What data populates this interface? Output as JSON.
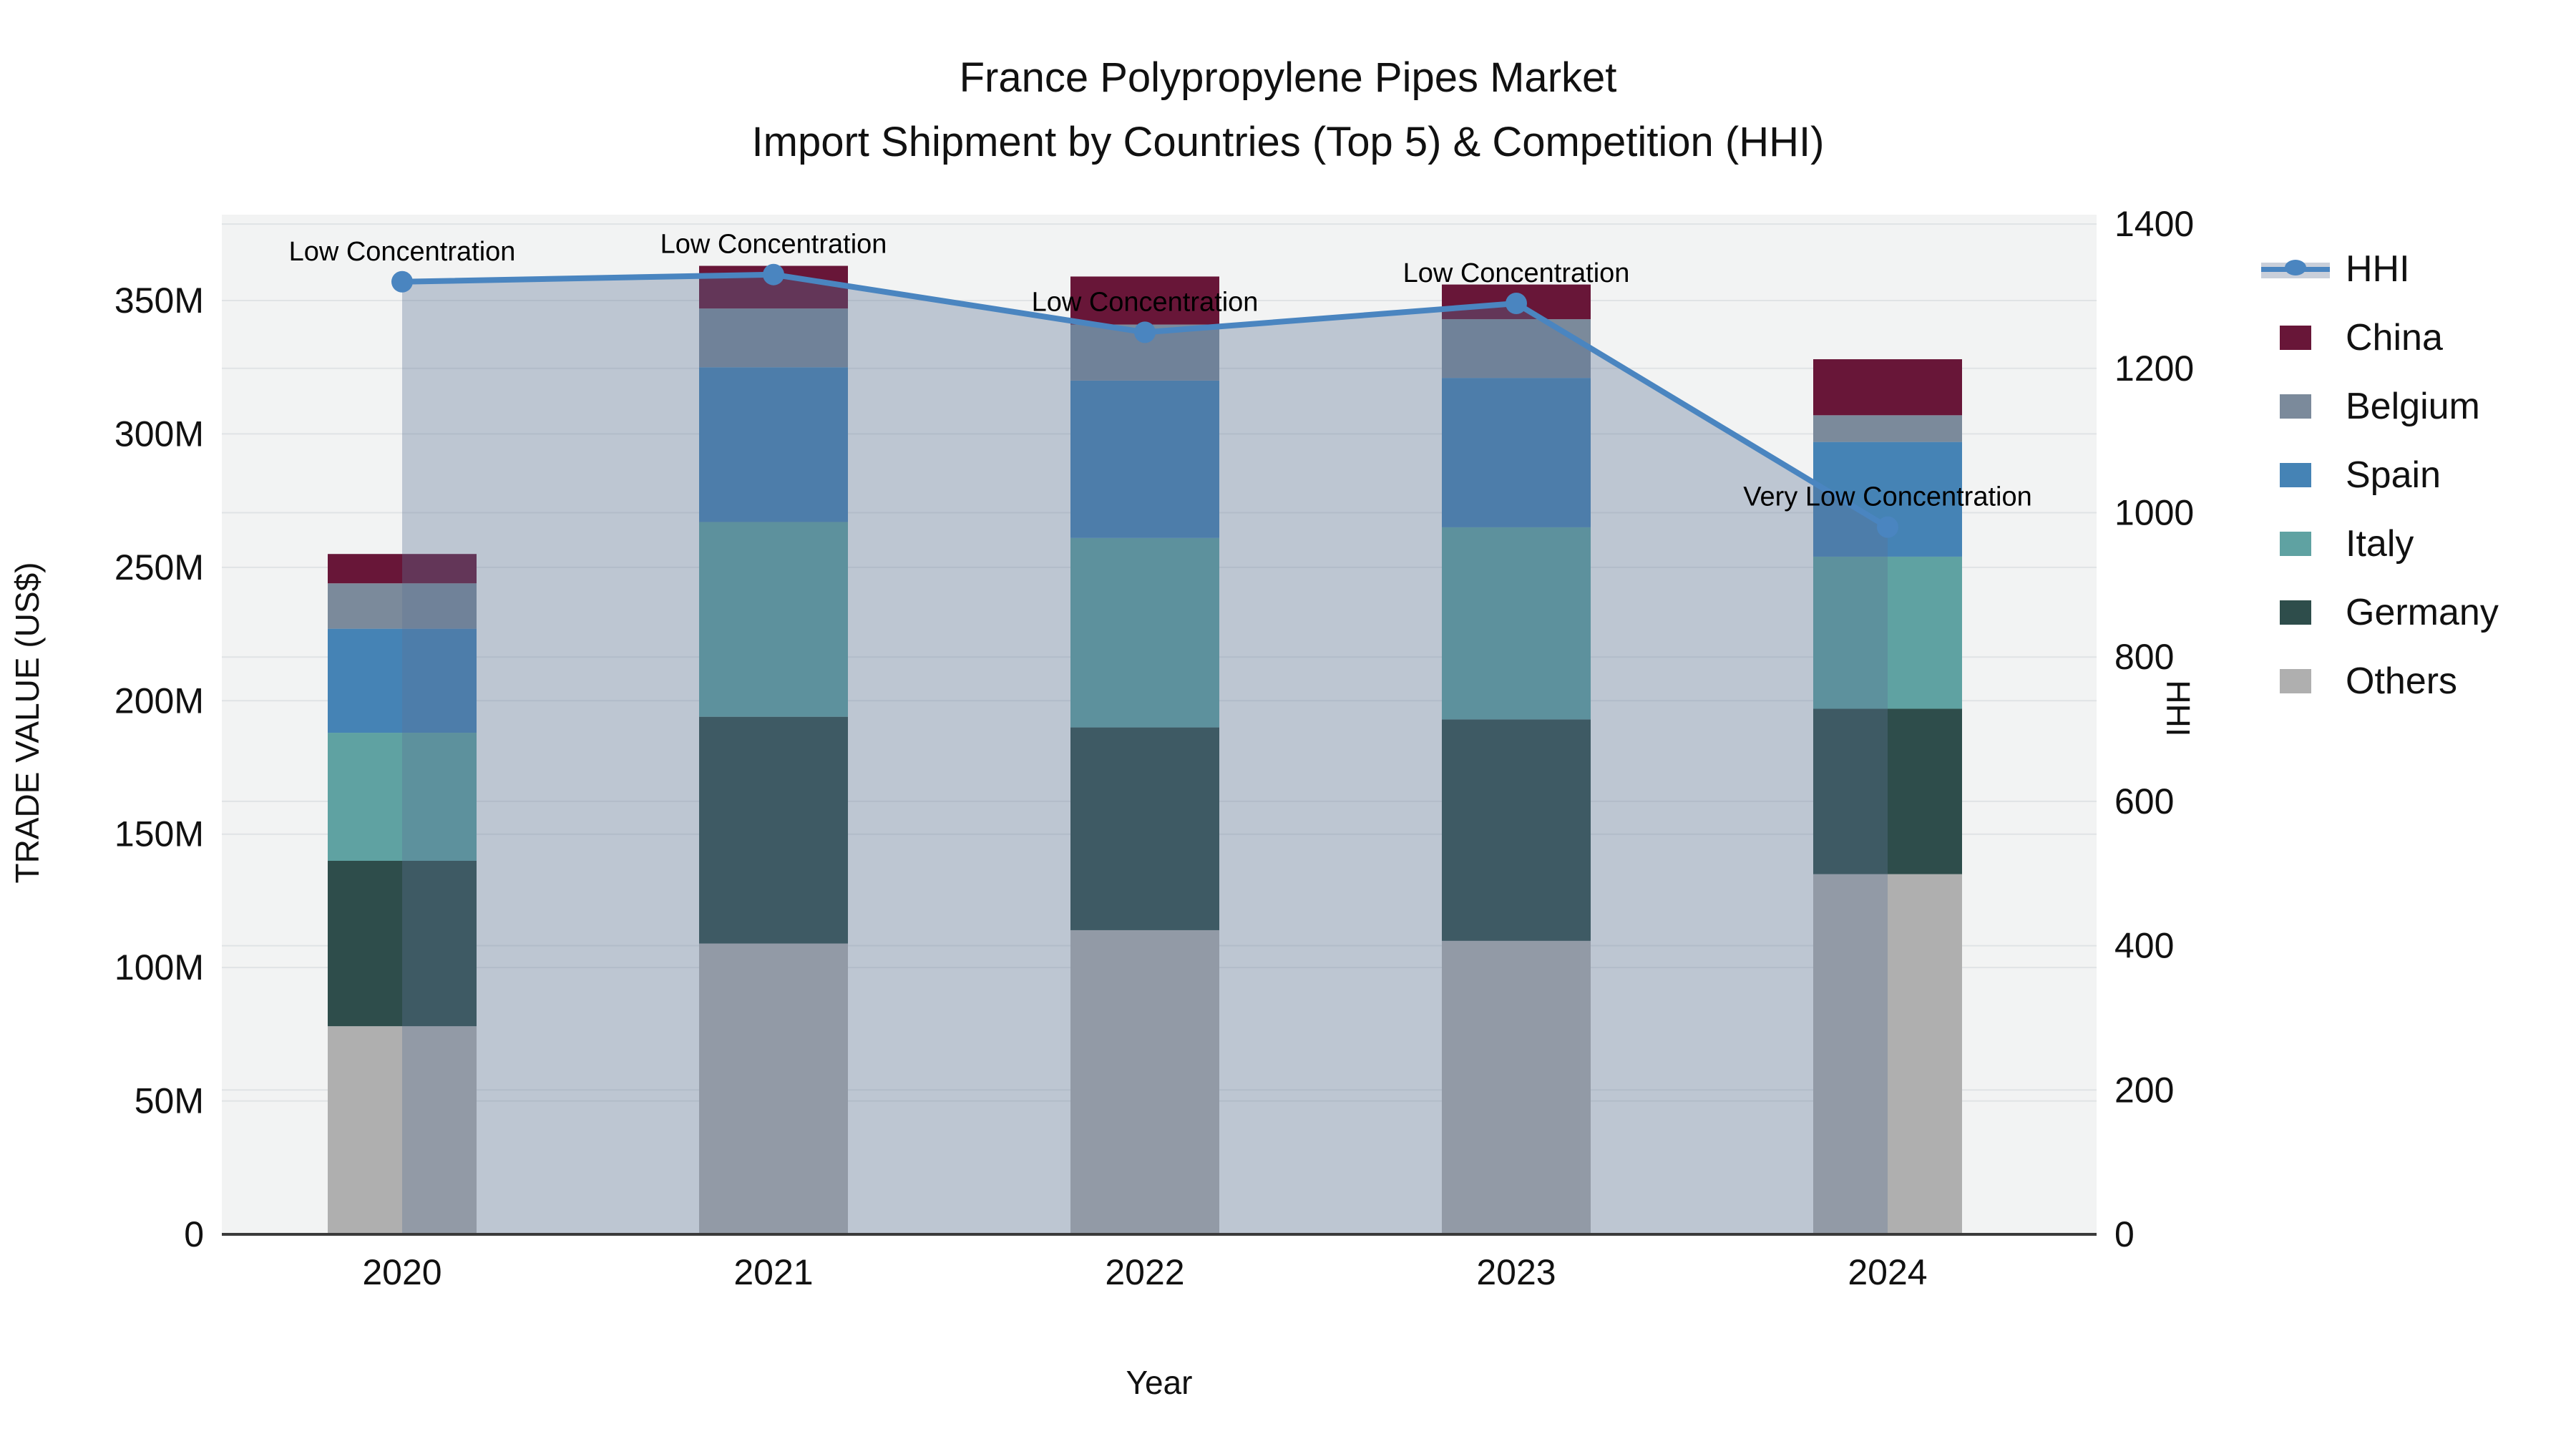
{
  "title": {
    "line1": "France Polypropylene Pipes Market",
    "line2": "Import Shipment by Countries (Top 5) & Competition (HHI)"
  },
  "axes": {
    "y_left": {
      "title": "TRADE VALUE (US$)",
      "tick_labels": [
        "0",
        "50M",
        "100M",
        "150M",
        "200M",
        "250M",
        "300M",
        "350M"
      ],
      "tick_values": [
        0,
        50,
        100,
        150,
        200,
        250,
        300,
        350
      ]
    },
    "y_right": {
      "title": "HHI",
      "tick_labels": [
        "0",
        "200",
        "400",
        "600",
        "800",
        "1000",
        "1200",
        "1400"
      ],
      "tick_values": [
        0,
        200,
        400,
        600,
        800,
        1000,
        1200,
        1400
      ]
    },
    "x": {
      "title": "Year",
      "tick_labels": [
        "2020",
        "2021",
        "2022",
        "2023",
        "2024"
      ]
    }
  },
  "legend": {
    "items": [
      {
        "label": "HHI",
        "type": "line",
        "color": "#4A85C0",
        "band": "#C9CFDA"
      },
      {
        "label": "China",
        "type": "swatch",
        "color": "#681638"
      },
      {
        "label": "Belgium",
        "type": "swatch",
        "color": "#7B8A9B"
      },
      {
        "label": "Spain",
        "type": "swatch",
        "color": "#4583B5"
      },
      {
        "label": "Italy",
        "type": "swatch",
        "color": "#5FA2A2"
      },
      {
        "label": "Germany",
        "type": "swatch",
        "color": "#2E4D4B"
      },
      {
        "label": "Others",
        "type": "swatch",
        "color": "#AFAFAF"
      }
    ]
  },
  "chart_data": {
    "type": "bar+line",
    "title": "France Polypropylene Pipes Market — Import Shipment by Countries (Top 5) & Competition (HHI)",
    "categories": [
      "2020",
      "2021",
      "2022",
      "2023",
      "2024"
    ],
    "bar_unit": "USD millions (left axis, stacked)",
    "stack_order": "bottom to top",
    "series": [
      {
        "name": "Others",
        "color": "#AFAFAF",
        "values": [
          78,
          109,
          114,
          110,
          135
        ]
      },
      {
        "name": "Germany",
        "color": "#2E4D4B",
        "values": [
          62,
          85,
          76,
          83,
          62
        ]
      },
      {
        "name": "Italy",
        "color": "#5FA2A2",
        "values": [
          48,
          73,
          71,
          72,
          57
        ]
      },
      {
        "name": "Spain",
        "color": "#4583B5",
        "values": [
          39,
          58,
          59,
          56,
          43
        ]
      },
      {
        "name": "Belgium",
        "color": "#7B8A9B",
        "values": [
          17,
          22,
          21,
          22,
          10
        ]
      },
      {
        "name": "China",
        "color": "#681638",
        "values": [
          11,
          16,
          18,
          13,
          21
        ]
      }
    ],
    "bar_totals": [
      255,
      363,
      359,
      356,
      328
    ],
    "line": {
      "name": "HHI",
      "color": "#4A85C0",
      "fill_color": "rgba(93,115,150,0.35)",
      "values": [
        1320,
        1330,
        1250,
        1290,
        980
      ],
      "axis": "right"
    },
    "annotations": [
      {
        "text": "Low Concentration",
        "index": 0
      },
      {
        "text": "Low Concentration",
        "index": 1
      },
      {
        "text": "Low Concentration",
        "index": 2
      },
      {
        "text": "Low Concentration",
        "index": 3
      },
      {
        "text": "Very Low Concentration",
        "index": 4
      }
    ],
    "xlabel": "Year",
    "ylabel_left": "TRADE VALUE (US$)",
    "ylabel_right": "HHI",
    "ylim_left": [
      0,
      382
    ],
    "ylim_right": [
      0,
      1413
    ],
    "grid": true,
    "plot_background": "#F2F3F3",
    "legend_position": "right"
  }
}
